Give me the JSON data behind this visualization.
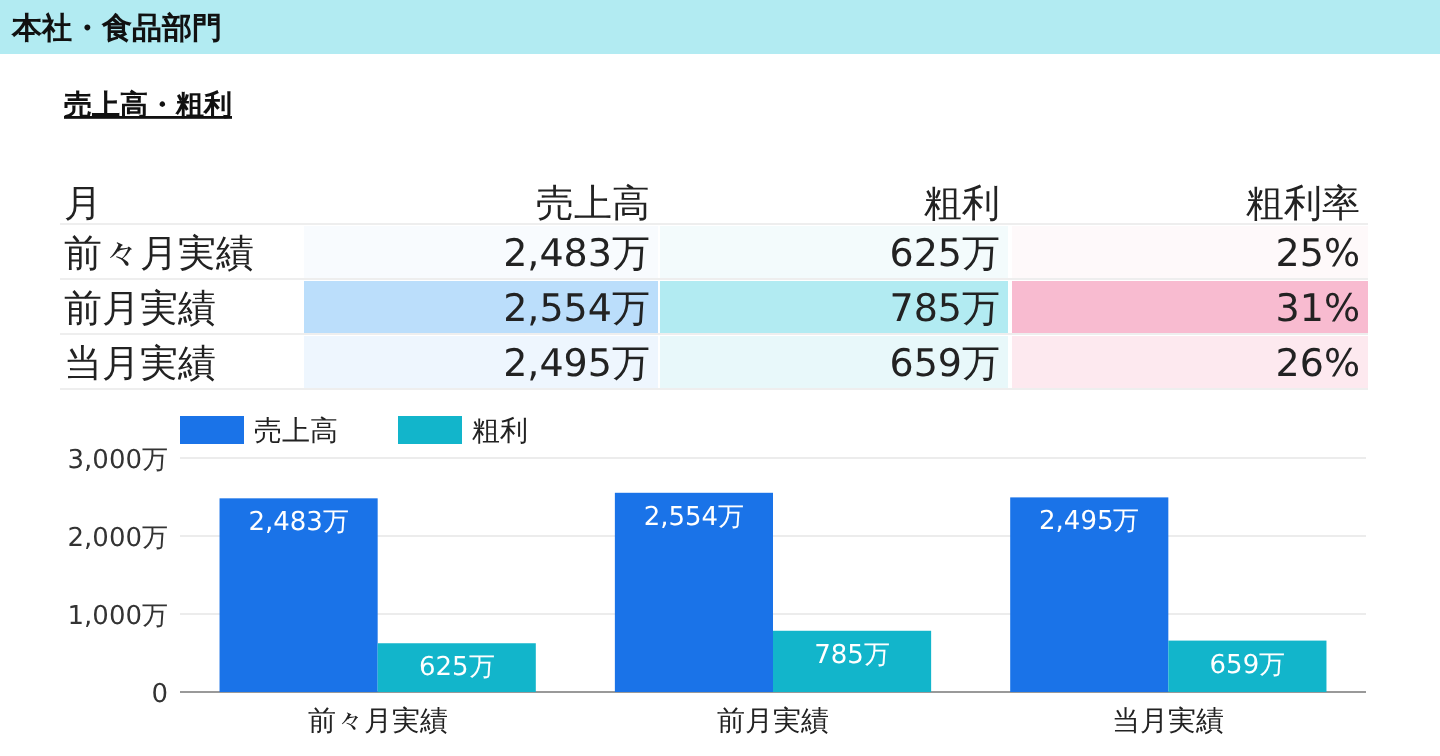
{
  "chart_data": [
    {
      "type": "other",
      "title": "本社・食品部門",
      "subtitle": "売上高・粗利",
      "xlabel": "月",
      "categories": [
        "前々月実績",
        "前月実績",
        "当月実績"
      ],
      "series": [
        {
          "name": "売上高",
          "values": [
            2483,
            2554,
            2495
          ],
          "value_labels": [
            "2,483万",
            "2,554万",
            "2,495万"
          ],
          "colors": [
            "#f8fbfe",
            "#bbdefb",
            "#eef6fe"
          ]
        },
        {
          "name": "粗利",
          "values": [
            625,
            785,
            659
          ],
          "value_labels": [
            "625万",
            "785万",
            "659万"
          ],
          "colors": [
            "#f3fbfc",
            "#b2ebf2",
            "#e8f8fa"
          ]
        },
        {
          "name": "粗利率",
          "values": [
            25,
            31,
            26
          ],
          "value_labels": [
            "25%",
            "31%",
            "26%"
          ],
          "colors": [
            "#fef9fa",
            "#f8bbd0",
            "#fde9ef"
          ]
        }
      ]
    },
    {
      "type": "bar",
      "categories": [
        "前々月実績",
        "前月実績",
        "当月実績"
      ],
      "series": [
        {
          "name": "売上高",
          "color": "#1a73e8",
          "values": [
            2483,
            2554,
            2495
          ],
          "value_labels": [
            "2,483万",
            "2,554万",
            "2,495万"
          ]
        },
        {
          "name": "粗利",
          "color": "#12b5cb",
          "values": [
            625,
            785,
            659
          ],
          "value_labels": [
            "625万",
            "785万",
            "659万"
          ]
        }
      ],
      "ylim": [
        0,
        3000
      ],
      "yticks": [
        0,
        {
          "value": 1000,
          "label": "1,000万"
        },
        {
          "value": 2000,
          "label": "2,000万"
        },
        {
          "value": 3000,
          "label": "3,000万"
        }
      ],
      "grid": "y",
      "legend": "top left"
    }
  ]
}
